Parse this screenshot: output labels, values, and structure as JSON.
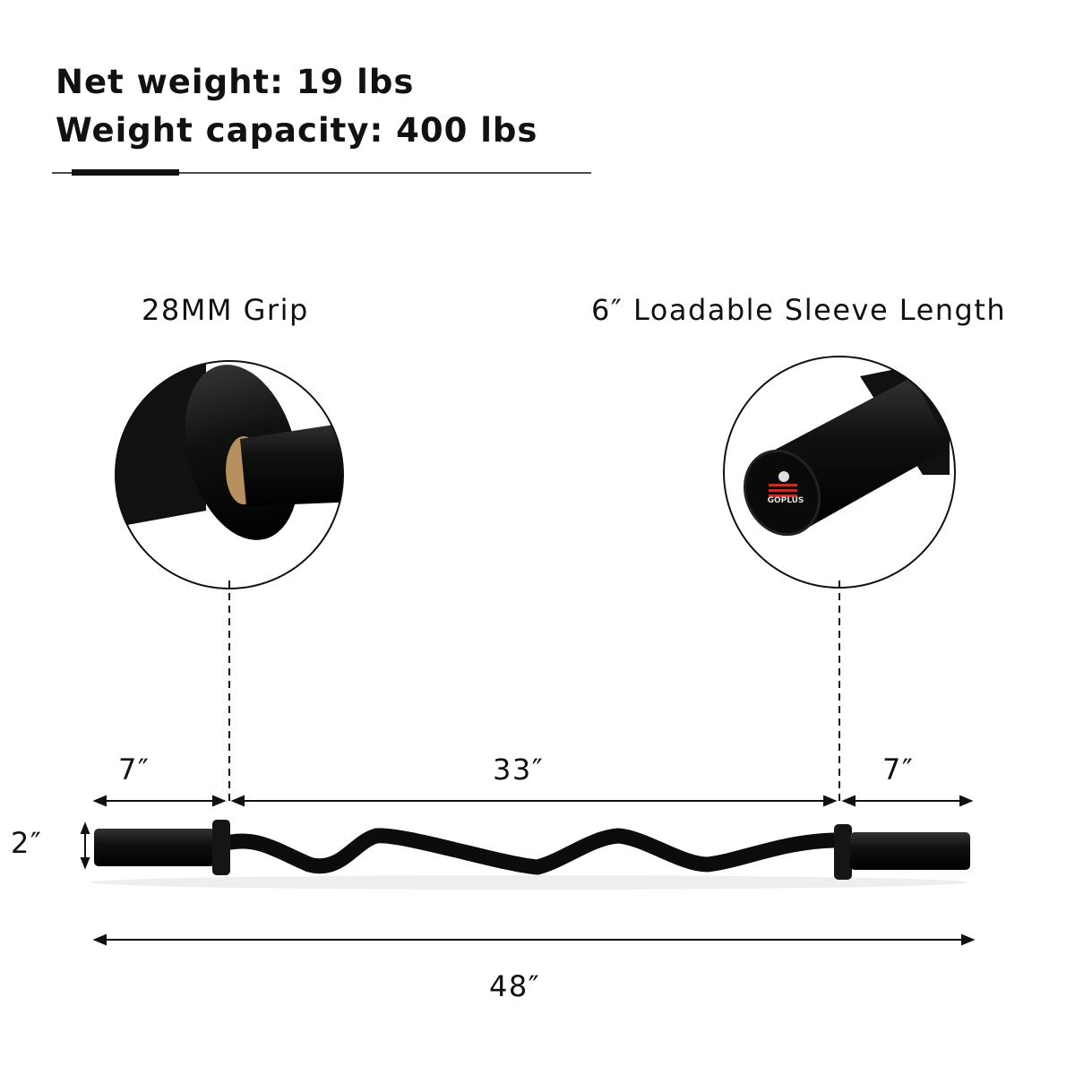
{
  "specs": {
    "net_weight": "Net weight: 19 lbs",
    "capacity": "Weight capacity: 400 lbs"
  },
  "callouts": {
    "grip": "28MM Grip",
    "sleeve": "6″ Loadable Sleeve Length"
  },
  "logo_text": "GOPLUS",
  "dimensions": {
    "left_sleeve": "7″",
    "middle": "33″",
    "right_sleeve": "7″",
    "diameter": "2″",
    "total": "48″"
  }
}
